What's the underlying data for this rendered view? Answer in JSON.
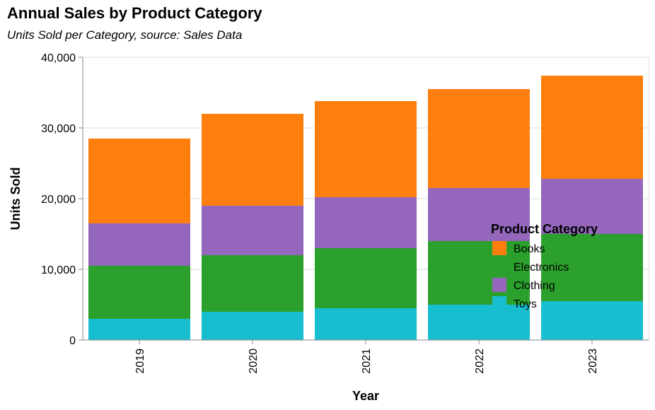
{
  "chart_data": {
    "type": "bar",
    "stacked": true,
    "title": "Annual Sales by Product Category",
    "subtitle": "Units Sold per Category, source: Sales Data",
    "xlabel": "Year",
    "ylabel": "Units Sold",
    "ylim": [
      0,
      40000
    ],
    "yticks": [
      0,
      10000,
      20000,
      30000,
      40000
    ],
    "ytick_labels": [
      "0",
      "10,000",
      "20,000",
      "30,000",
      "40,000"
    ],
    "grid": true,
    "legend": {
      "title": "Product Category",
      "placement": "bottom-right, overlapping plot"
    },
    "categories": [
      "2019",
      "2020",
      "2021",
      "2022",
      "2023"
    ],
    "series": [
      {
        "name": "Toys",
        "color": "#17becf",
        "values": [
          3000,
          4000,
          4500,
          5000,
          5500
        ]
      },
      {
        "name": "Electronics",
        "color": "#2ca02c",
        "values": [
          7500,
          8000,
          8500,
          9000,
          9500
        ]
      },
      {
        "name": "Clothing",
        "color": "#9467bd",
        "values": [
          6000,
          7000,
          7200,
          7500,
          7800
        ]
      },
      {
        "name": "Books",
        "color": "#ff7f0e",
        "values": [
          12000,
          13000,
          13600,
          14000,
          14600
        ]
      }
    ],
    "legend_order": [
      "Books",
      "Electronics",
      "Clothing",
      "Toys"
    ]
  }
}
